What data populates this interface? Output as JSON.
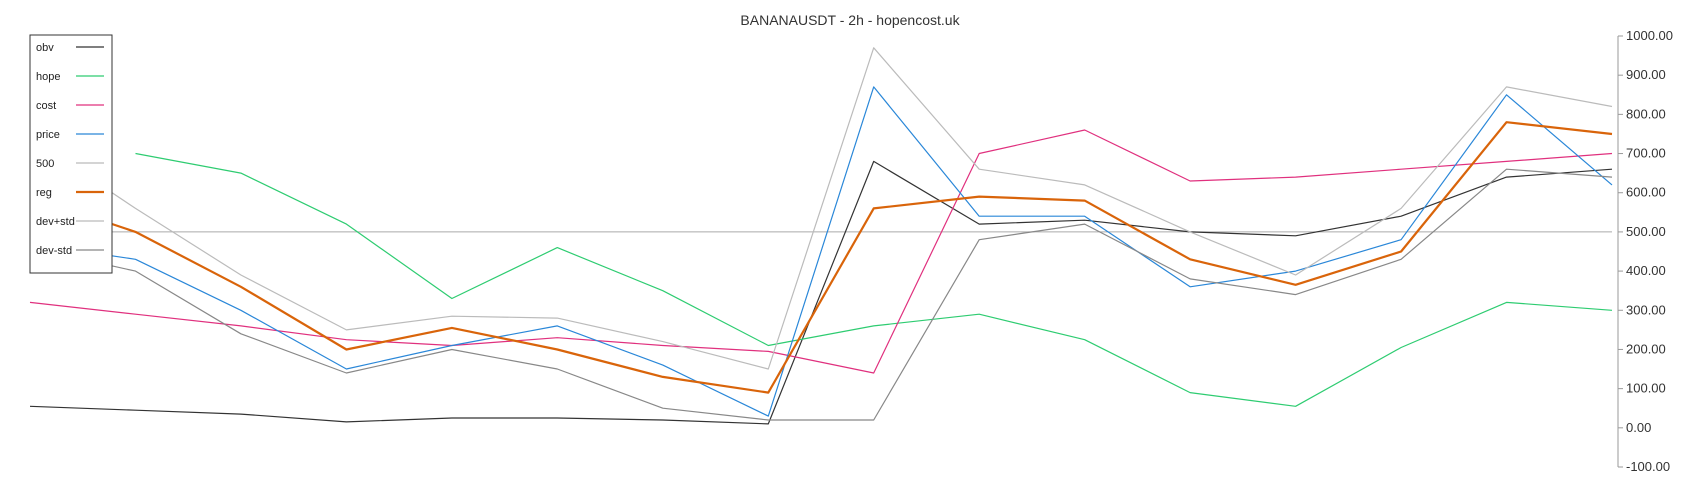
{
  "chart_data": {
    "type": "line",
    "title": "BANANAUSDT - 2h - hopencost.uk",
    "xlabel": "",
    "ylabel": "",
    "ylim": [
      -100,
      1000
    ],
    "yticks": [
      "1000.00",
      "900.00",
      "800.00",
      "700.00",
      "600.00",
      "500.00",
      "400.00",
      "300.00",
      "200.00",
      "100.00",
      "0.00",
      "-100.00"
    ],
    "reference_line": 500,
    "legend_position": "top-left",
    "grid": false,
    "x": [
      0,
      20,
      40,
      60,
      80,
      100,
      120,
      140,
      160,
      180,
      200,
      220,
      240,
      260,
      280,
      300
    ],
    "series": [
      {
        "name": "obv",
        "color": "#333333",
        "values": [
          55,
          45,
          35,
          15,
          25,
          25,
          20,
          10,
          680,
          520,
          530,
          500,
          490,
          540,
          640,
          660
        ]
      },
      {
        "name": "hope",
        "color": "#2ecc71",
        "values": [
          null,
          700,
          650,
          520,
          330,
          460,
          350,
          210,
          260,
          290,
          225,
          90,
          55,
          205,
          320,
          300
        ]
      },
      {
        "name": "cost",
        "color": "#e0307e",
        "values": [
          320,
          290,
          260,
          225,
          210,
          230,
          210,
          195,
          140,
          700,
          760,
          630,
          640,
          660,
          680,
          700
        ]
      },
      {
        "name": "price",
        "color": "#2a87d8",
        "values": [
          470,
          430,
          300,
          150,
          210,
          260,
          160,
          30,
          870,
          540,
          540,
          360,
          400,
          480,
          850,
          620
        ]
      },
      {
        "name": "500",
        "color": "#bbbbbb",
        "values": [
          500,
          500,
          500,
          500,
          500,
          500,
          500,
          500,
          500,
          500,
          500,
          500,
          500,
          500,
          500,
          500
        ]
      },
      {
        "name": "reg",
        "color": "#d9640a",
        "values": [
          590,
          500,
          360,
          200,
          255,
          200,
          130,
          90,
          560,
          590,
          580,
          430,
          365,
          450,
          780,
          750
        ]
      },
      {
        "name": "dev+std",
        "color": "#bbbbbb",
        "values": [
          740,
          560,
          390,
          250,
          285,
          280,
          220,
          150,
          970,
          660,
          620,
          500,
          390,
          560,
          870,
          820
        ]
      },
      {
        "name": "dev-std",
        "color": "#888888",
        "values": [
          460,
          400,
          240,
          140,
          200,
          150,
          50,
          20,
          20,
          480,
          520,
          380,
          340,
          430,
          660,
          640
        ]
      }
    ]
  }
}
